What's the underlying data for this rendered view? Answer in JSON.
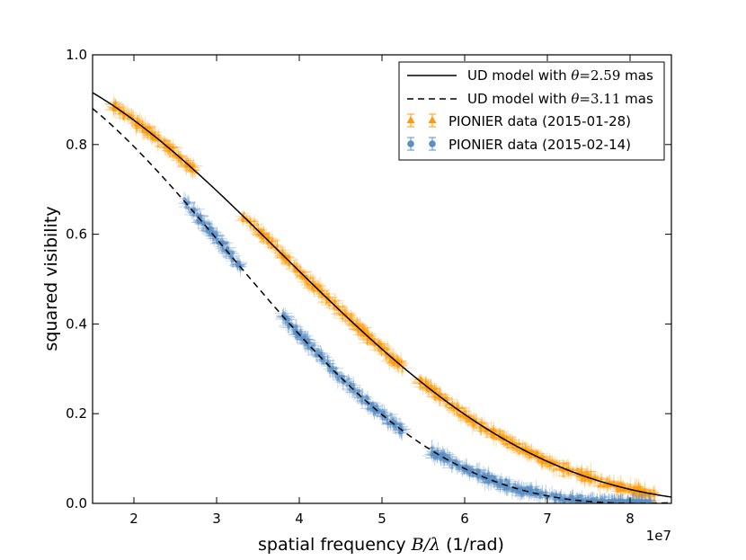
{
  "chart_data": {
    "type": "scatter",
    "xlabel_prefix": "spatial frequency ",
    "xlabel_math": "B/λ",
    "xlabel_suffix": " (1/rad)",
    "ylabel": "squared visibility",
    "x_offset_label": "1e7",
    "x_scale": 10000000,
    "xlim": [
      1.5,
      8.5
    ],
    "ylim": [
      0.0,
      1.0
    ],
    "x_ticks": [
      2,
      3,
      4,
      5,
      6,
      7,
      8
    ],
    "y_ticks": [
      0.0,
      0.2,
      0.4,
      0.6,
      0.8,
      1.0
    ],
    "x_tick_labels": [
      "2",
      "3",
      "4",
      "5",
      "6",
      "7",
      "8"
    ],
    "y_tick_labels": [
      "0.0",
      "0.2",
      "0.4",
      "0.6",
      "0.8",
      "1.0"
    ],
    "legend_position": "top-right",
    "models": [
      {
        "name": "UD model with θ=2.59 mas",
        "label_pre": "UD model with ",
        "label_theta": "θ",
        "label_eq": "=2.59",
        "label_post": " mas",
        "theta_mas": 2.59,
        "style": "solid",
        "color": "#000000"
      },
      {
        "name": "UD model with θ=3.11 mas",
        "label_pre": "UD model with ",
        "label_theta": "θ",
        "label_eq": "=3.11",
        "label_post": " mas",
        "theta_mas": 3.11,
        "style": "dashed",
        "color": "#000000"
      }
    ],
    "series": [
      {
        "name": "PIONIER data (2015-01-28)",
        "marker": "triangle",
        "color": "#ff9a0a",
        "x_groups": [
          [
            1.75,
            2.75
          ],
          [
            3.3,
            5.25
          ],
          [
            5.45,
            8.3
          ]
        ],
        "model_theta_mas": 2.59,
        "points": [
          [
            1.8,
            0.89
          ],
          [
            2.0,
            0.87
          ],
          [
            2.2,
            0.83
          ],
          [
            2.4,
            0.8
          ],
          [
            2.6,
            0.77
          ],
          [
            3.4,
            0.62
          ],
          [
            3.8,
            0.55
          ],
          [
            4.2,
            0.48
          ],
          [
            4.6,
            0.4
          ],
          [
            5.0,
            0.34
          ],
          [
            5.6,
            0.25
          ],
          [
            6.0,
            0.2
          ],
          [
            6.4,
            0.15
          ],
          [
            6.8,
            0.11
          ],
          [
            7.2,
            0.08
          ],
          [
            7.6,
            0.05
          ],
          [
            8.0,
            0.03
          ]
        ]
      },
      {
        "name": "PIONIER data (2015-02-14)",
        "marker": "circle",
        "color": "#5b8fc4",
        "x_groups": [
          [
            2.6,
            3.3
          ],
          [
            3.8,
            5.25
          ],
          [
            5.6,
            8.25
          ]
        ],
        "model_theta_mas": 3.11,
        "points": [
          [
            2.65,
            0.71
          ],
          [
            2.8,
            0.66
          ],
          [
            3.0,
            0.61
          ],
          [
            3.2,
            0.58
          ],
          [
            3.9,
            0.38
          ],
          [
            4.2,
            0.33
          ],
          [
            4.5,
            0.28
          ],
          [
            4.8,
            0.23
          ],
          [
            5.1,
            0.19
          ],
          [
            5.7,
            0.09
          ],
          [
            6.0,
            0.07
          ],
          [
            6.4,
            0.05
          ],
          [
            6.8,
            0.03
          ],
          [
            7.2,
            0.02
          ],
          [
            7.6,
            0.01
          ],
          [
            8.0,
            0.005
          ]
        ]
      }
    ]
  }
}
